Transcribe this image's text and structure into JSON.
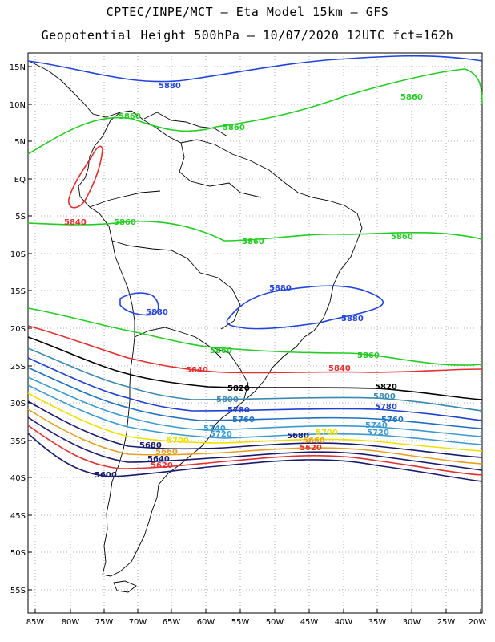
{
  "header": {
    "line1": "CPTEC/INPE/MCT –  Eta Model 15km – GFS",
    "line2": "Geopotential Height 500hPa – 10/07/2020 12UTC fct=162h"
  },
  "axes": {
    "lat_labels": [
      "15N",
      "10N",
      "5N",
      "EQ",
      "5S",
      "10S",
      "15S",
      "20S",
      "25S",
      "30S",
      "35S",
      "40S",
      "45S",
      "50S",
      "55S"
    ],
    "lon_labels": [
      "85W",
      "80W",
      "75W",
      "70W",
      "65W",
      "60W",
      "55W",
      "50W",
      "45W",
      "40W",
      "35W",
      "30W",
      "25W",
      "20W"
    ]
  },
  "colors": {
    "c5600": "#1a1a6e",
    "c5620": "#e03030",
    "c5640": "#1a1a6e",
    "c5660": "#e8a020",
    "c5680": "#1a1a6e",
    "c5700": "#f0e000",
    "c5720": "#3a9ad0",
    "c5740": "#3a9ad0",
    "c5760": "#2070c0",
    "c5780": "#2040d0",
    "c5800": "#3a8ab0",
    "c5820": "#000000",
    "c5840": "#e03030",
    "c5860": "#22cc22",
    "c5880": "#2244dd",
    "coast": "#000000"
  },
  "contours": {
    "l5880_n": "5880",
    "l5860_n1": "5860",
    "l5860_n2": "5860",
    "l5860_n3": "5860",
    "l5840_amz": "5840",
    "l5860_s1": "5860",
    "l5860_s2": "5860",
    "l5860_s3": "5860",
    "l5880_w": "5880",
    "l5880_e1": "5880",
    "l5880_e2": "5880",
    "l5860_t1": "5860",
    "l5860_t2": "5860",
    "l5840_t1": "5840",
    "l5840_t2": "5840",
    "l5820_1": "5820",
    "l5820_2": "5820",
    "l5800_1": "5800",
    "l5800_2": "5800",
    "l5780_1": "5780",
    "l5780_2": "5780",
    "l5760_1": "5760",
    "l5760_2": "5760",
    "l5740_1": "5740",
    "l5740_2": "5740",
    "l5720_1": "5720",
    "l5720_2": "5720",
    "l5700_1": "5700",
    "l5700_2": "5700",
    "l5680_1": "5680",
    "l5680_2": "5680",
    "l5660_1": "5660",
    "l5660_2": "5660",
    "l5640": "5640",
    "l5620_1": "5620",
    "l5620_2": "5620",
    "l5600": "5600"
  }
}
